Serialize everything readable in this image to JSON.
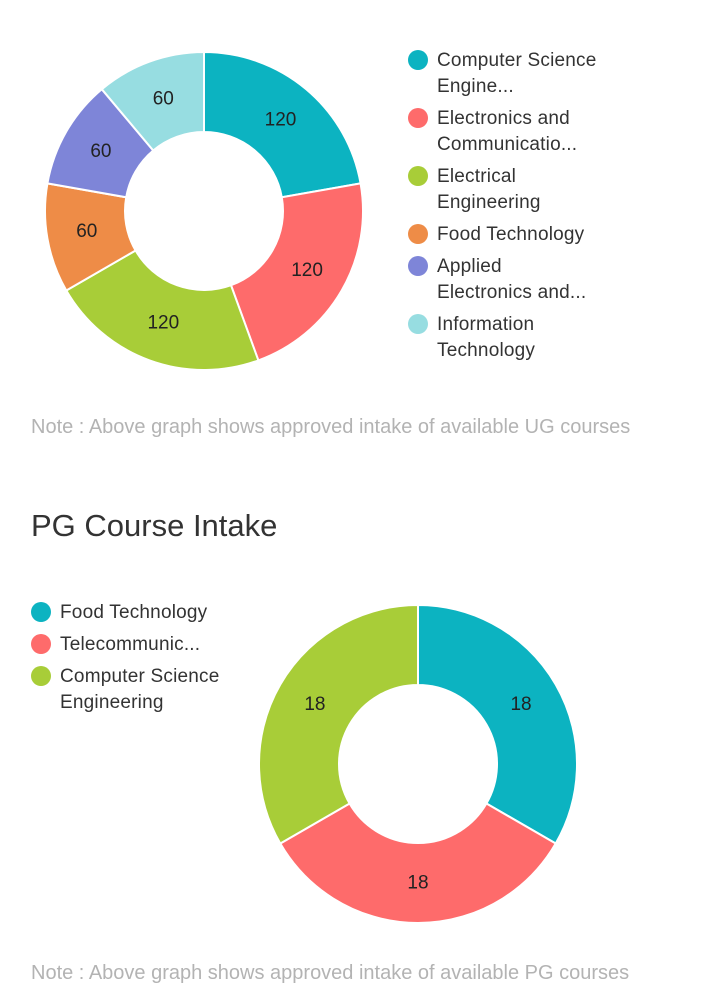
{
  "ug_section": {
    "note": "Note : Above graph shows approved intake of available UG courses"
  },
  "pg_section": {
    "title": "PG Course Intake",
    "note": "Note : Above graph shows approved intake of available PG courses"
  },
  "chart_data": [
    {
      "type": "pie",
      "donut": true,
      "legend_position": "right",
      "categories": [
        "Computer Science Engine...",
        "Electronics and Communicatio...",
        "Electrical Engineering",
        "Food Technology",
        "Applied Electronics and...",
        "Information Technology"
      ],
      "values": [
        120,
        120,
        120,
        60,
        60,
        60
      ],
      "value_labels": [
        "120",
        "120",
        "120",
        "60",
        "60",
        "60"
      ],
      "colors": [
        "#0cb3c1",
        "#fe6b6b",
        "#a8cd38",
        "#ee8c47",
        "#7e85d8",
        "#97dde1"
      ]
    },
    {
      "type": "pie",
      "donut": true,
      "legend_position": "left",
      "categories": [
        "Food Technology",
        "Telecommunic...",
        "Computer Science Engineering"
      ],
      "values": [
        18,
        18,
        18
      ],
      "value_labels": [
        "18",
        "18",
        "18"
      ],
      "colors": [
        "#0cb3c1",
        "#fe6b6b",
        "#a8cd38"
      ]
    }
  ]
}
